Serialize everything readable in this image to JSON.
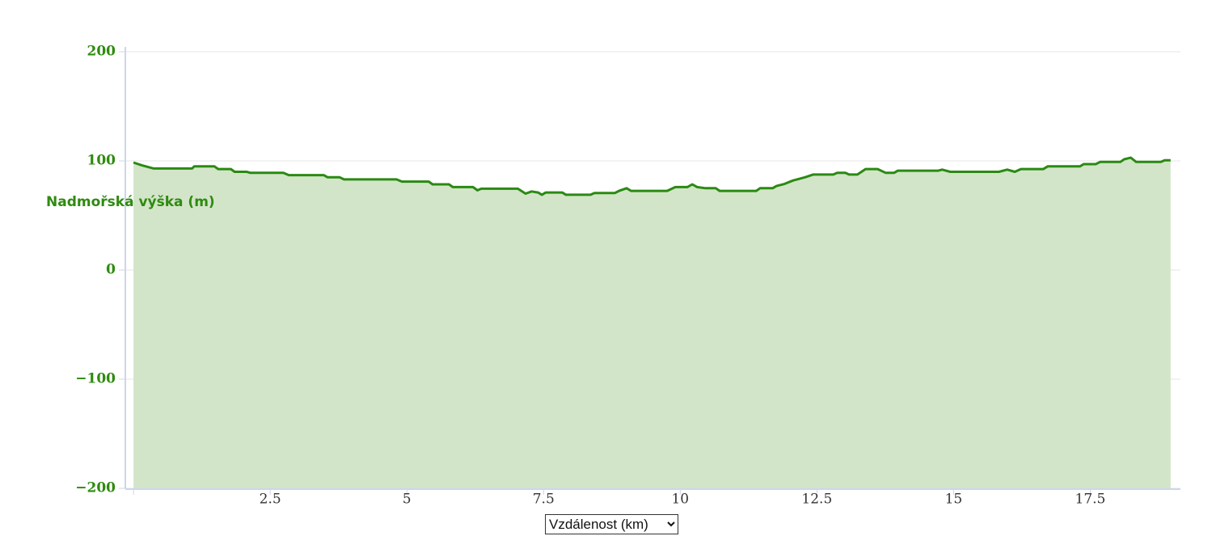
{
  "chart_data": {
    "type": "area",
    "y_label": "Nadmořská výška (m)",
    "x_label": "Vzdálenost (km)",
    "color": "#2a8a12",
    "fill": "#d3e5c9",
    "x": [
      0,
      0.15,
      0.37,
      1.07,
      1.11,
      1.48,
      1.55,
      1.78,
      1.85,
      2.07,
      2.14,
      2.74,
      2.84,
      3.48,
      3.55,
      3.77,
      3.85,
      4.81,
      4.91,
      5.4,
      5.47,
      5.77,
      5.84,
      6.21,
      6.29,
      6.36,
      7.03,
      7.17,
      7.28,
      7.4,
      7.47,
      7.54,
      7.84,
      7.91,
      8.36,
      8.43,
      8.8,
      8.88,
      9.02,
      9.1,
      9.76,
      9.91,
      10.13,
      10.22,
      10.31,
      10.46,
      10.65,
      10.72,
      11.39,
      11.46,
      11.69,
      11.76,
      11.91,
      12.06,
      12.28,
      12.43,
      12.8,
      12.87,
      13.02,
      13.09,
      13.24,
      13.39,
      13.61,
      13.76,
      13.91,
      13.98,
      14.72,
      14.79,
      14.94,
      15.83,
      15.98,
      16.12,
      16.23,
      16.64,
      16.72,
      17.31,
      17.38,
      17.6,
      17.68,
      18.05,
      18.12,
      18.24,
      18.34,
      18.79,
      18.86,
      18.97
    ],
    "values": [
      98.5,
      96,
      93,
      93,
      95,
      95,
      92.5,
      92.5,
      90,
      90,
      89,
      89,
      87,
      87,
      85,
      85,
      83,
      83,
      81,
      81,
      78.5,
      78.5,
      76,
      76,
      73,
      74.5,
      74.5,
      70,
      72,
      71,
      69,
      71,
      71,
      69,
      69,
      70.5,
      70.5,
      72.5,
      75,
      72.5,
      72.5,
      76,
      76,
      78.5,
      76,
      75,
      75,
      72.5,
      72.5,
      75,
      75,
      77,
      79,
      82,
      85,
      87.5,
      87.5,
      89,
      89,
      87.5,
      87.5,
      92.5,
      92.5,
      89,
      89,
      91,
      91,
      92,
      90,
      90,
      92,
      90,
      92.5,
      92.5,
      95,
      95,
      97,
      97,
      99,
      99,
      101.5,
      103,
      99,
      99,
      100.5,
      100.5
    ],
    "xlim": [
      -0.15,
      19.15
    ],
    "ylim": [
      -200,
      200
    ],
    "xticks": [
      2.5,
      5,
      7.5,
      10,
      12.5,
      15,
      17.5
    ],
    "yticks": [
      {
        "value": -200,
        "label": "−200"
      },
      {
        "value": -100,
        "label": "−100"
      },
      0,
      100,
      200
    ],
    "grid": true
  }
}
